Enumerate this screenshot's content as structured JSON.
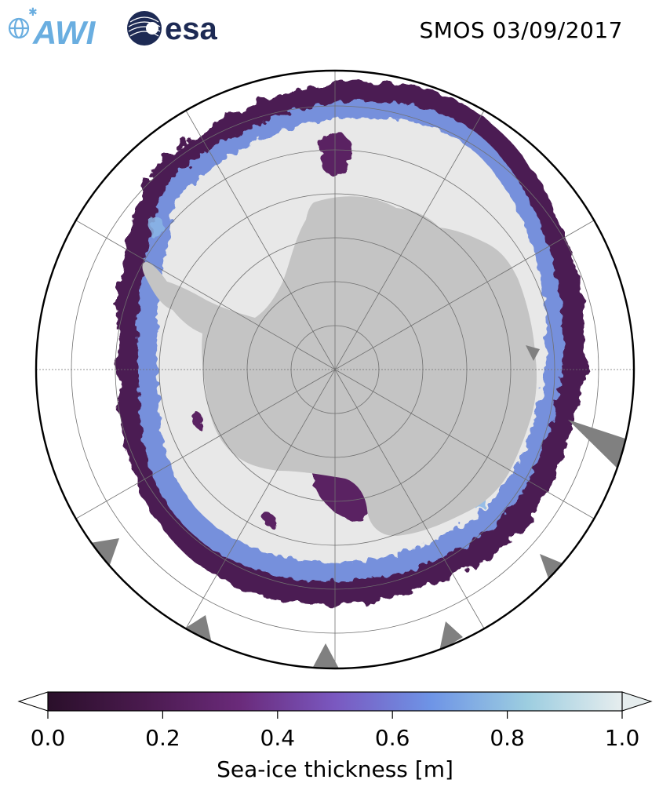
{
  "header": {
    "title": "SMOS 03/09/2017",
    "logos": [
      {
        "name": "awi-logo",
        "text": "AWI",
        "color": "#6aaee0"
      },
      {
        "name": "esa-logo",
        "text": "esa",
        "color": "#1d2a54"
      }
    ]
  },
  "map": {
    "projection": "south-polar-stereographic",
    "land_color": "#c4c4c4",
    "thick_ice_color": "#e8e8e8",
    "open_ocean_color": "#ffffff",
    "missing_data_color": "#808080",
    "graticule": true
  },
  "colorbar": {
    "label": "Sea-ice thickness [m]",
    "min": 0.0,
    "max": 1.0,
    "extend": "both",
    "ticks": [
      "0.0",
      "0.2",
      "0.4",
      "0.6",
      "0.8",
      "1.0"
    ],
    "colormap": [
      "#2a0f2a",
      "#4a1a4e",
      "#6a2a7a",
      "#7a58c0",
      "#6e94e6",
      "#9ccde0",
      "#e6edee"
    ]
  }
}
